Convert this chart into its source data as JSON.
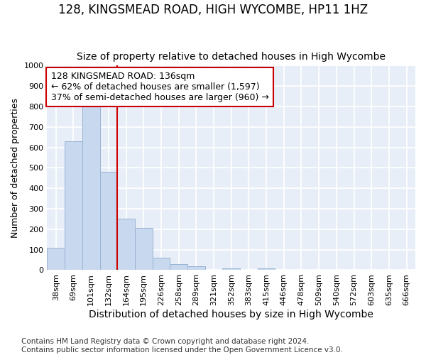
{
  "title_line1": "128, KINGSMEAD ROAD, HIGH WYCOMBE, HP11 1HZ",
  "title_line2": "Size of property relative to detached houses in High Wycombe",
  "xlabel": "Distribution of detached houses by size in High Wycombe",
  "ylabel": "Number of detached properties",
  "categories": [
    "38sqm",
    "69sqm",
    "101sqm",
    "132sqm",
    "164sqm",
    "195sqm",
    "226sqm",
    "258sqm",
    "289sqm",
    "321sqm",
    "352sqm",
    "383sqm",
    "415sqm",
    "446sqm",
    "478sqm",
    "509sqm",
    "540sqm",
    "572sqm",
    "603sqm",
    "635sqm",
    "666sqm"
  ],
  "values": [
    110,
    630,
    805,
    480,
    250,
    205,
    60,
    28,
    18,
    0,
    10,
    0,
    10,
    0,
    0,
    0,
    0,
    0,
    0,
    0,
    0
  ],
  "bar_color": "#c8d8ee",
  "bar_edge_color": "#9ab4d4",
  "vline_color": "#cc0000",
  "annotation_text": "128 KINGSMEAD ROAD: 136sqm\n← 62% of detached houses are smaller (1,597)\n37% of semi-detached houses are larger (960) →",
  "annotation_box_color": "#ffffff",
  "annotation_box_edge_color": "#cc0000",
  "ylim": [
    0,
    1000
  ],
  "yticks": [
    0,
    100,
    200,
    300,
    400,
    500,
    600,
    700,
    800,
    900,
    1000
  ],
  "plot_bg_color": "#e8eef8",
  "grid_color": "#ffffff",
  "fig_bg_color": "#ffffff",
  "footer_line1": "Contains HM Land Registry data © Crown copyright and database right 2024.",
  "footer_line2": "Contains public sector information licensed under the Open Government Licence v3.0.",
  "title_fontsize": 12,
  "subtitle_fontsize": 10,
  "xlabel_fontsize": 10,
  "ylabel_fontsize": 9,
  "tick_fontsize": 8,
  "annotation_fontsize": 9,
  "footer_fontsize": 7.5
}
